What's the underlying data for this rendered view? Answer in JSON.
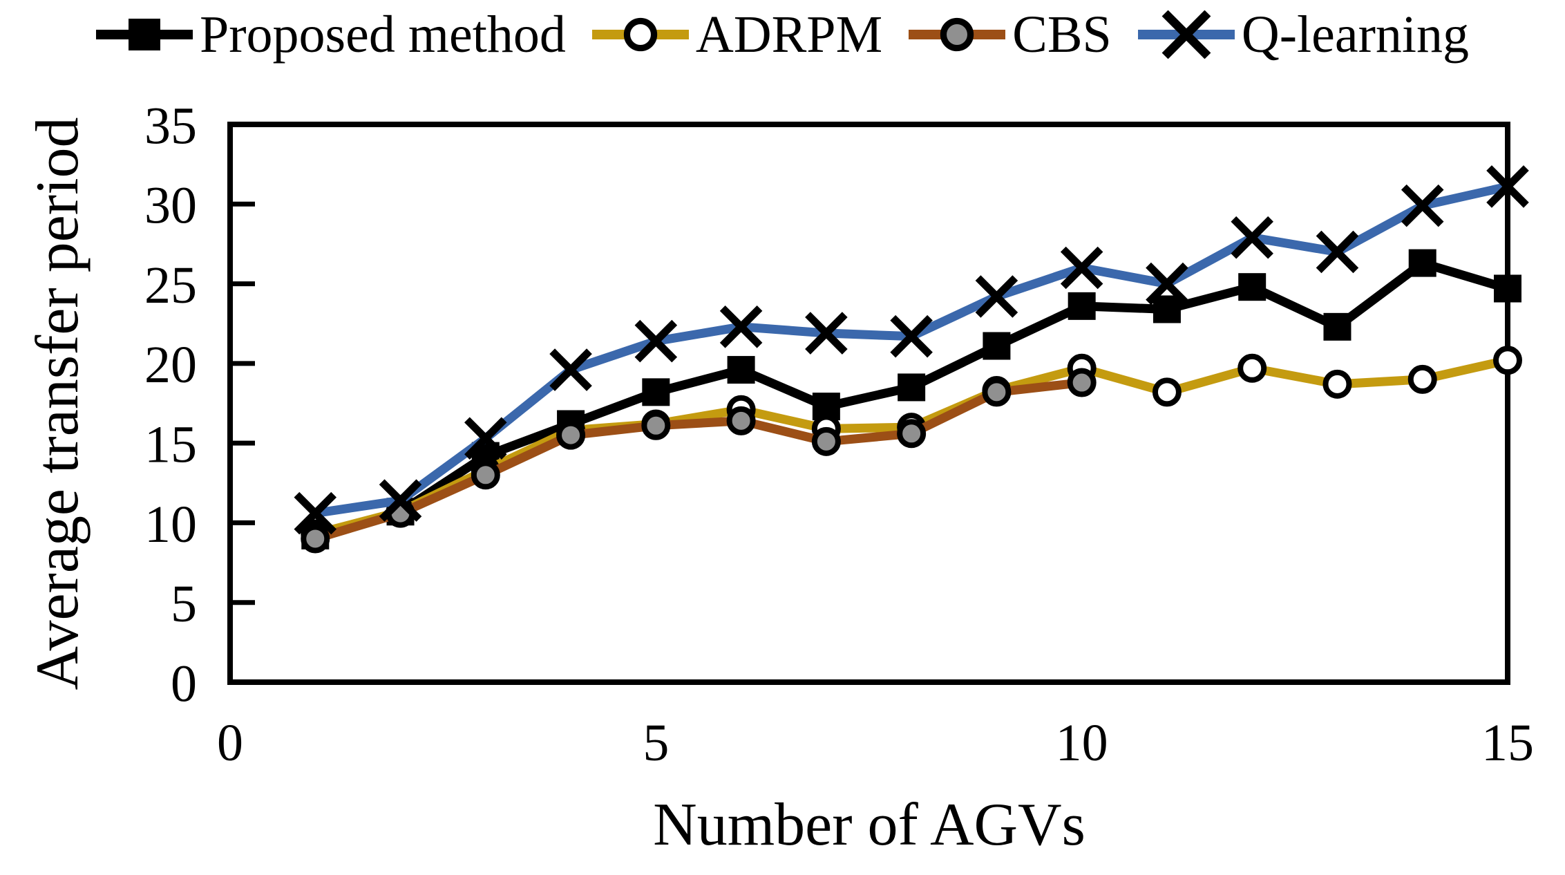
{
  "chart_data": {
    "type": "line",
    "title": "",
    "xlabel": "Number of AGVs",
    "ylabel": "Average transfer period",
    "xlim": [
      0,
      15
    ],
    "ylim": [
      0,
      35
    ],
    "x_ticks": [
      0,
      5,
      10,
      15
    ],
    "y_ticks": [
      0,
      5,
      10,
      15,
      20,
      25,
      30,
      35
    ],
    "grid": false,
    "legend_position": "top",
    "x": [
      1,
      2,
      3,
      4,
      5,
      6,
      7,
      8,
      9,
      10,
      11,
      12,
      13,
      14,
      15
    ],
    "series": [
      {
        "name": "Proposed method",
        "color": "#000000",
        "marker": "square",
        "marker_fill": "#000000",
        "values": [
          9.2,
          10.7,
          14.2,
          16.2,
          18.2,
          19.6,
          17.3,
          18.5,
          21.1,
          23.6,
          23.4,
          24.8,
          22.3,
          26.3,
          24.7
        ]
      },
      {
        "name": "ADRPM",
        "color": "#C49B10",
        "marker": "circle",
        "marker_fill": "#FFFFFF",
        "values": [
          9.3,
          10.7,
          13.3,
          15.8,
          16.2,
          17.1,
          15.9,
          16.0,
          18.3,
          19.7,
          18.2,
          19.7,
          18.7,
          19.0,
          20.2
        ]
      },
      {
        "name": "CBS",
        "color": "#9C4F16",
        "marker": "circle",
        "marker_fill": "#909090",
        "values": [
          9.0,
          10.6,
          13.0,
          15.5,
          16.1,
          16.4,
          15.1,
          15.6,
          18.2,
          18.8
        ]
      },
      {
        "name": "Q-learning",
        "color": "#3B68AC",
        "marker": "x",
        "marker_fill": "#000000",
        "values": [
          10.6,
          11.4,
          15.3,
          19.6,
          21.4,
          22.3,
          21.9,
          21.7,
          24.2,
          26.0,
          25.0,
          27.9,
          27.0,
          29.9,
          31.1
        ]
      }
    ]
  }
}
